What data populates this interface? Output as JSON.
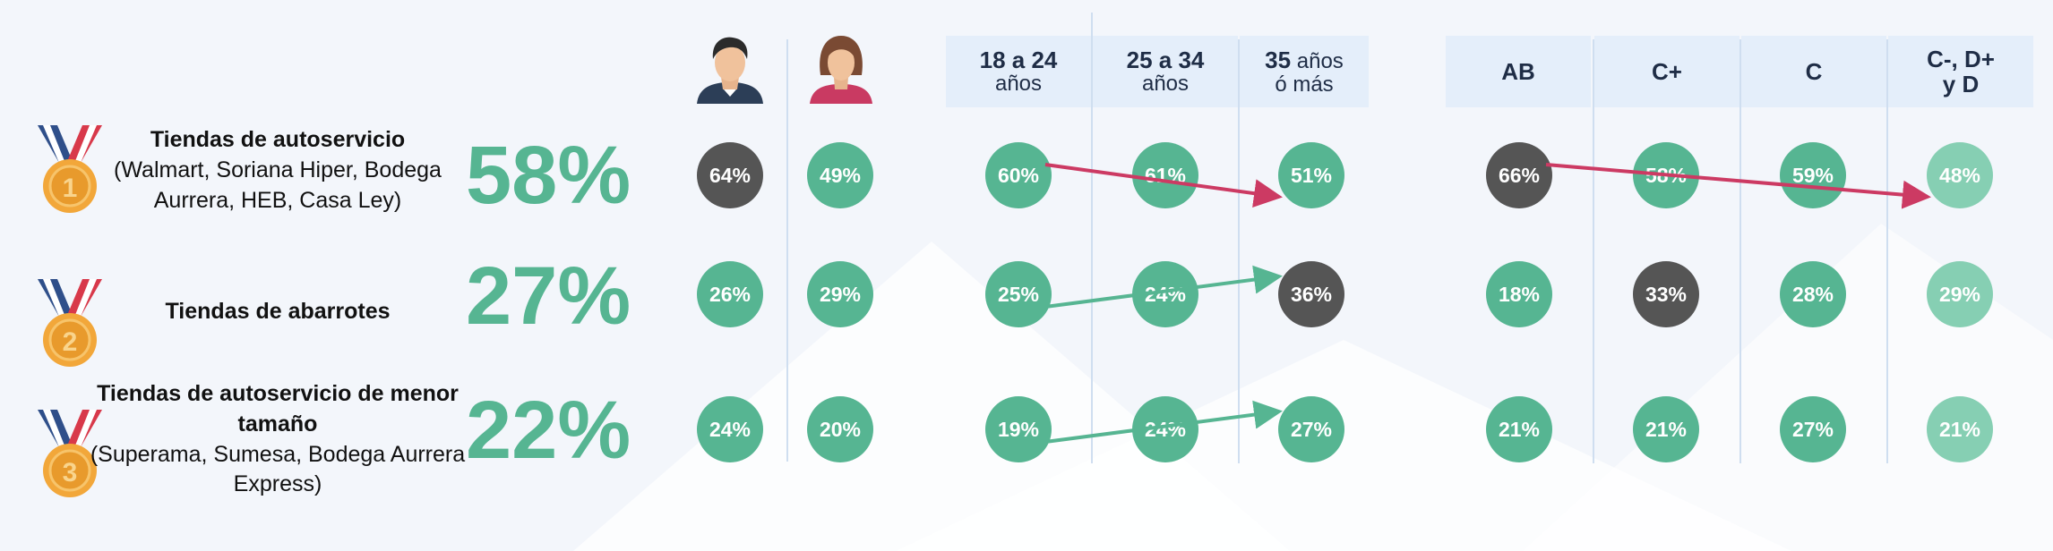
{
  "colors": {
    "accent_green": "#56b592",
    "light_green": "#86cfb3",
    "dark_circle": "#555555",
    "down_arrow": "#cc3a63",
    "up_arrow": "#56b592",
    "header_bg": "#e4eefa"
  },
  "icons": {
    "man": "man-avatar-icon",
    "woman": "woman-avatar-icon"
  },
  "headers": {
    "age": [
      {
        "bold": "18 a 24",
        "normal": "años"
      },
      {
        "bold": "25 a 34",
        "normal": "años"
      },
      {
        "bold": "35",
        "normal_inline": " años",
        "normal": "ó más"
      }
    ],
    "nse": [
      {
        "bold": "AB",
        "bold2": ""
      },
      {
        "bold": "C+",
        "bold2": ""
      },
      {
        "bold": "C",
        "bold2": ""
      },
      {
        "bold": "C-, D+",
        "bold2": "y D"
      }
    ]
  },
  "chart_data": {
    "type": "table",
    "columns": [
      "Hombre",
      "Mujer",
      "18 a 24 años",
      "25 a 34 años",
      "35 años ó más",
      "AB",
      "C+",
      "C",
      "C-, D+ y D"
    ],
    "rows": [
      {
        "rank": 1,
        "title": "Tiendas de autoservicio",
        "subtitle": "(Walmart, Soriana Hiper, Bodega Aurrera, HEB, Casa Ley)",
        "total": "58%",
        "values": [
          "64%",
          "49%",
          "60%",
          "61%",
          "51%",
          "66%",
          "58%",
          "59%",
          "48%"
        ],
        "highlight": [
          0,
          5
        ],
        "age_trend": "down",
        "nse_trend": "down"
      },
      {
        "rank": 2,
        "title": "Tiendas de abarrotes",
        "subtitle": "",
        "total": "27%",
        "values": [
          "26%",
          "29%",
          "25%",
          "24%",
          "36%",
          "18%",
          "33%",
          "28%",
          "29%"
        ],
        "highlight": [
          4,
          6
        ],
        "age_trend": "up",
        "nse_trend": null
      },
      {
        "rank": 3,
        "title": "Tiendas de autoservicio de menor tamaño",
        "subtitle": "(Superama, Sumesa, Bodega Aurrera Express)",
        "total": "22%",
        "values": [
          "24%",
          "20%",
          "19%",
          "24%",
          "27%",
          "21%",
          "21%",
          "27%",
          "21%"
        ],
        "highlight": [],
        "age_trend": "up",
        "nse_trend": null
      }
    ]
  }
}
